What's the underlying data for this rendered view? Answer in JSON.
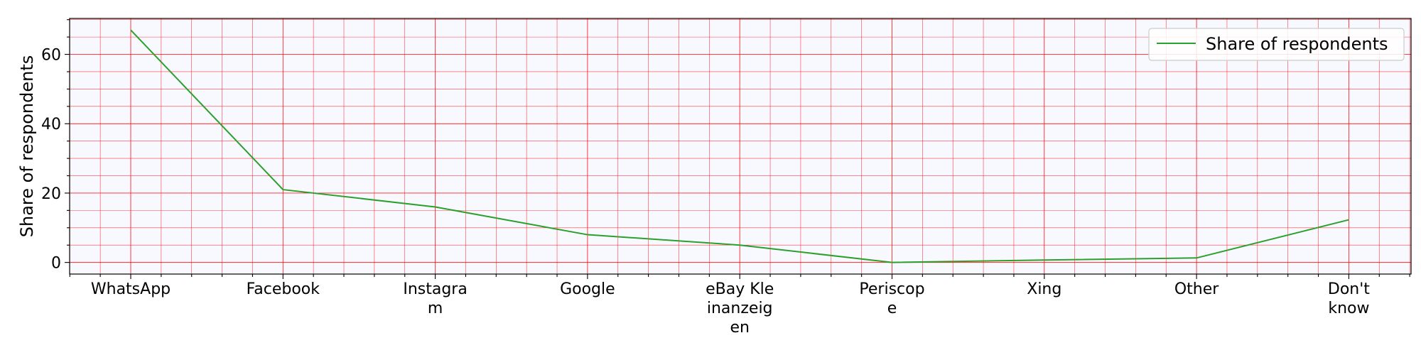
{
  "chart_data": {
    "type": "line",
    "categories": [
      "WhatsApp",
      "Facebook",
      "Instagram",
      "Google",
      "eBay Kleinanzeigen",
      "Periscope",
      "Xing",
      "Other",
      "Don't know"
    ],
    "category_display_lines": [
      [
        "WhatsApp"
      ],
      [
        "Facebook"
      ],
      [
        "Instagra",
        "m"
      ],
      [
        "Google"
      ],
      [
        "eBay Kle",
        "inanzeig",
        "en"
      ],
      [
        "Periscop",
        "e"
      ],
      [
        "Xing"
      ],
      [
        "Other"
      ],
      [
        "Don't",
        "know"
      ]
    ],
    "series": [
      {
        "name": "Share of respondents",
        "color": "#2ca02c",
        "values": [
          67,
          21,
          16,
          8,
          5,
          0,
          0.7,
          1.3,
          12.3
        ]
      }
    ],
    "xlabel": "",
    "ylabel": "Share of respondents",
    "ylim": [
      -3.35,
      70.35
    ],
    "yticks": [
      0,
      20,
      40,
      60
    ],
    "y_minor_step": 5,
    "grid": true,
    "grid_color": "#ff0000",
    "plot_background": "#f8f8ff",
    "legend_position": "top-right"
  }
}
